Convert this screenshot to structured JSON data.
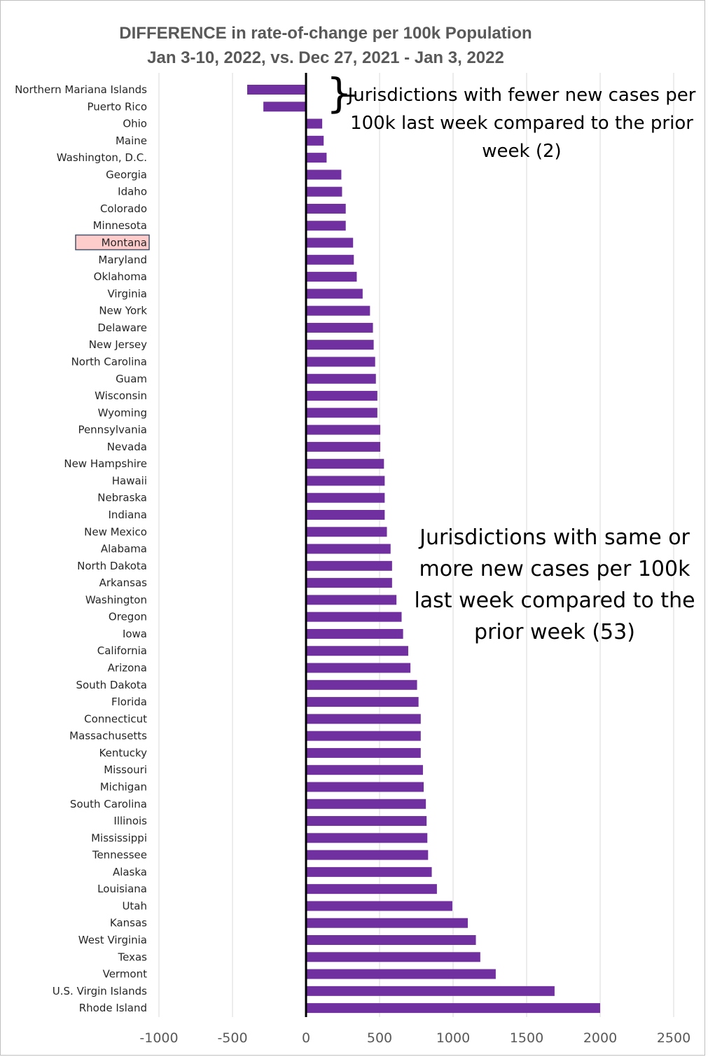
{
  "chart_data": {
    "type": "bar",
    "orientation": "horizontal",
    "title_line1": "DIFFERENCE in rate-of-change per 100k Population",
    "title_line2": "Jan 3-10, 2022, vs. Dec 27, 2021 - Jan 3, 2022",
    "xlim": [
      -1000,
      2500
    ],
    "x_ticks": [
      "-1000",
      "-500",
      "0",
      "500",
      "1000",
      "1500",
      "2000",
      "2500"
    ],
    "grid": "vertical",
    "bar_color": "#7030a0",
    "highlight_category": "Montana",
    "highlight_color": "#ffcccc",
    "categories": [
      "Northern Mariana Islands",
      "Puerto Rico",
      "Ohio",
      "Maine",
      "Washington, D.C.",
      "Georgia",
      "Idaho",
      "Colorado",
      "Minnesota",
      "Montana",
      "Maryland",
      "Oklahoma",
      "Virginia",
      "New York",
      "Delaware",
      "New Jersey",
      "North Carolina",
      "Guam",
      "Wisconsin",
      "Wyoming",
      "Pennsylvania",
      "Nevada",
      "New Hampshire",
      "Hawaii",
      "Nebraska",
      "Indiana",
      "New Mexico",
      "Alabama",
      "North Dakota",
      "Arkansas",
      "Washington",
      "Oregon",
      "Iowa",
      "California",
      "Arizona",
      "South Dakota",
      "Florida",
      "Connecticut",
      "Massachusetts",
      "Kentucky",
      "Missouri",
      "Michigan",
      "South Carolina",
      "Illinois",
      "Mississippi",
      "Tennessee",
      "Alaska",
      "Louisiana",
      "Utah",
      "Kansas",
      "West Virginia",
      "Texas",
      "Vermont",
      "U.S. Virgin Islands",
      "Rhode Island"
    ],
    "values": [
      -400,
      -290,
      110,
      120,
      140,
      240,
      245,
      270,
      270,
      320,
      325,
      345,
      385,
      435,
      455,
      460,
      470,
      475,
      485,
      485,
      505,
      505,
      530,
      535,
      535,
      535,
      550,
      575,
      585,
      585,
      615,
      650,
      660,
      695,
      710,
      755,
      765,
      780,
      780,
      780,
      795,
      800,
      815,
      820,
      825,
      830,
      855,
      890,
      995,
      1100,
      1155,
      1185,
      1290,
      1690,
      2000
    ]
  },
  "annotations": {
    "fewer": "Jurisdictions with fewer new cases per 100k last week compared to the prior week (2)",
    "more": "Jurisdictions with same or more new cases per 100k last week compared to the prior week (53)"
  }
}
